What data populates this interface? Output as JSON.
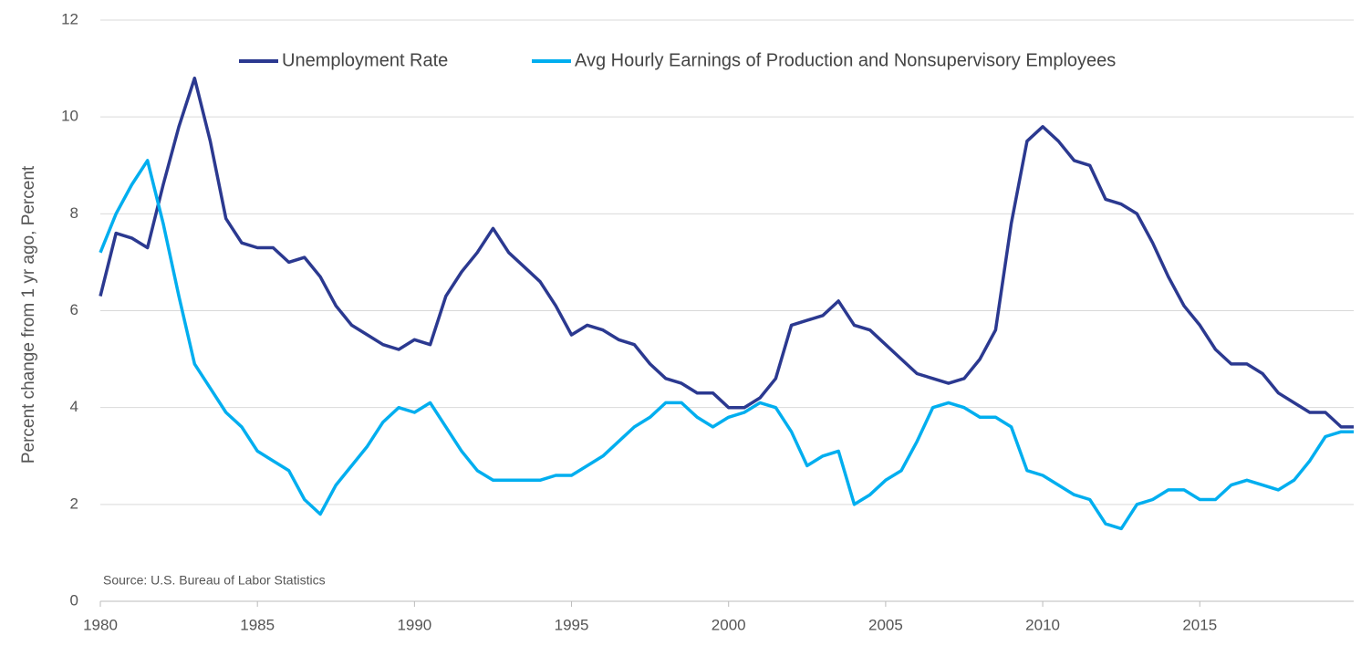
{
  "chart_data": {
    "type": "line",
    "y_label": "Percent change from 1 yr ago, Percent",
    "source": "Source: U.S. Bureau of Labor Statistics",
    "x": [
      1980,
      1980.5,
      1981,
      1981.5,
      1982,
      1982.5,
      1983,
      1983.5,
      1984,
      1984.5,
      1985,
      1985.5,
      1986,
      1986.5,
      1987,
      1987.5,
      1988,
      1988.5,
      1989,
      1989.5,
      1990,
      1990.5,
      1991,
      1991.5,
      1992,
      1992.5,
      1993,
      1993.5,
      1994,
      1994.5,
      1995,
      1995.5,
      1996,
      1996.5,
      1997,
      1997.5,
      1998,
      1998.5,
      1999,
      1999.5,
      2000,
      2000.5,
      2001,
      2001.5,
      2002,
      2002.5,
      2003,
      2003.5,
      2004,
      2004.5,
      2005,
      2005.5,
      2006,
      2006.5,
      2007,
      2007.5,
      2008,
      2008.5,
      2009,
      2009.5,
      2010,
      2010.5,
      2011,
      2011.5,
      2012,
      2012.5,
      2013,
      2013.5,
      2014,
      2014.5,
      2015,
      2015.5,
      2016,
      2016.5,
      2017,
      2017.5,
      2018,
      2018.5,
      2019,
      2019.5,
      2019.9
    ],
    "series": [
      {
        "name": "Unemployment Rate",
        "color": "#2b3990",
        "values": [
          6.3,
          7.6,
          7.5,
          7.3,
          8.6,
          9.8,
          10.8,
          9.5,
          7.9,
          7.4,
          7.3,
          7.3,
          7.0,
          7.1,
          6.7,
          6.1,
          5.7,
          5.5,
          5.3,
          5.2,
          5.4,
          5.3,
          6.3,
          6.8,
          7.2,
          7.7,
          7.2,
          6.9,
          6.6,
          6.1,
          5.5,
          5.7,
          5.6,
          5.4,
          5.3,
          4.9,
          4.6,
          4.5,
          4.3,
          4.3,
          4.0,
          4.0,
          4.2,
          4.6,
          5.7,
          5.8,
          5.9,
          6.2,
          5.7,
          5.6,
          5.3,
          5.0,
          4.7,
          4.6,
          4.5,
          4.6,
          5.0,
          5.6,
          7.8,
          9.5,
          9.8,
          9.5,
          9.1,
          9.0,
          8.3,
          8.2,
          8.0,
          7.4,
          6.7,
          6.1,
          5.7,
          5.2,
          4.9,
          4.9,
          4.7,
          4.3,
          4.1,
          3.9,
          3.9,
          3.6,
          3.6
        ]
      },
      {
        "name": "Avg Hourly Earnings of Production and Nonsupervisory Employees",
        "color": "#00aeef",
        "values": [
          7.2,
          8.0,
          8.6,
          9.1,
          7.8,
          6.3,
          4.9,
          4.4,
          3.9,
          3.6,
          3.1,
          2.9,
          2.7,
          2.1,
          1.8,
          2.4,
          2.8,
          3.2,
          3.7,
          4.0,
          3.9,
          4.1,
          3.6,
          3.1,
          2.7,
          2.5,
          2.5,
          2.5,
          2.5,
          2.6,
          2.6,
          2.8,
          3.0,
          3.3,
          3.6,
          3.8,
          4.1,
          4.1,
          3.8,
          3.6,
          3.8,
          3.9,
          4.1,
          4.0,
          3.5,
          2.8,
          3.0,
          3.1,
          2.0,
          2.2,
          2.5,
          2.7,
          3.3,
          4.0,
          4.1,
          4.0,
          3.8,
          3.8,
          3.6,
          2.7,
          2.6,
          2.4,
          2.2,
          2.1,
          1.6,
          1.5,
          2.0,
          2.1,
          2.3,
          2.3,
          2.1,
          2.1,
          2.4,
          2.5,
          2.4,
          2.3,
          2.5,
          2.9,
          3.4,
          3.5,
          3.5
        ]
      }
    ],
    "xlim": [
      1980,
      2019.9
    ],
    "xticks": [
      1980,
      1985,
      1990,
      1995,
      2000,
      2005,
      2010,
      2015
    ],
    "ylim": [
      0,
      12
    ],
    "yticks": [
      0,
      2,
      4,
      6,
      8,
      10,
      12
    ],
    "grid": true,
    "legend": "top"
  }
}
